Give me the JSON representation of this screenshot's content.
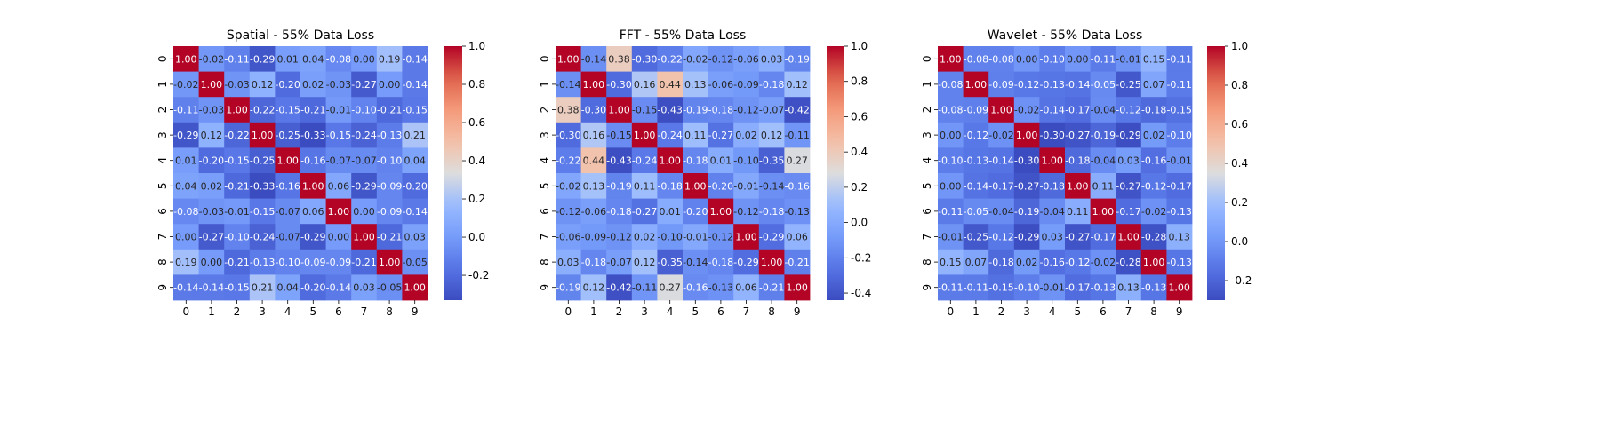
{
  "chart_data": [
    {
      "type": "heatmap",
      "title": "Spatial - 55% Data Loss",
      "x_labels": [
        "0",
        "1",
        "2",
        "3",
        "4",
        "5",
        "6",
        "7",
        "8",
        "9"
      ],
      "y_labels": [
        "0",
        "1",
        "2",
        "3",
        "4",
        "5",
        "6",
        "7",
        "8",
        "9"
      ],
      "colorscale": "coolwarm",
      "vmin": -0.33,
      "vmax": 1.0,
      "colorbar_ticks": [
        "-0.2",
        "0.0",
        "0.2",
        "0.4",
        "0.6",
        "0.8",
        "1.0"
      ],
      "colorbar_tick_values": [
        -0.2,
        0.0,
        0.2,
        0.4,
        0.6,
        0.8,
        1.0
      ],
      "values": [
        [
          1.0,
          -0.02,
          -0.11,
          -0.29,
          0.01,
          0.04,
          -0.08,
          0.0,
          0.19,
          -0.14
        ],
        [
          -0.02,
          1.0,
          -0.03,
          0.12,
          -0.2,
          0.02,
          -0.03,
          -0.27,
          0.0,
          -0.14
        ],
        [
          -0.11,
          -0.03,
          1.0,
          -0.22,
          -0.15,
          -0.21,
          -0.01,
          -0.1,
          -0.21,
          -0.15
        ],
        [
          -0.29,
          0.12,
          -0.22,
          1.0,
          -0.25,
          -0.33,
          -0.15,
          -0.24,
          -0.13,
          0.21
        ],
        [
          0.01,
          -0.2,
          -0.15,
          -0.25,
          1.0,
          -0.16,
          -0.07,
          -0.07,
          -0.1,
          0.04
        ],
        [
          0.04,
          0.02,
          -0.21,
          -0.33,
          -0.16,
          1.0,
          0.06,
          -0.29,
          -0.09,
          -0.2
        ],
        [
          -0.08,
          -0.03,
          -0.01,
          -0.15,
          -0.07,
          0.06,
          1.0,
          -0.0,
          -0.09,
          -0.14
        ],
        [
          0.0,
          -0.27,
          -0.1,
          -0.24,
          -0.07,
          -0.29,
          -0.0,
          1.0,
          -0.21,
          0.03
        ],
        [
          0.19,
          0.0,
          -0.21,
          -0.13,
          -0.1,
          -0.09,
          -0.09,
          -0.21,
          1.0,
          -0.05
        ],
        [
          -0.14,
          -0.14,
          -0.15,
          0.21,
          0.04,
          -0.2,
          -0.14,
          0.03,
          -0.05,
          1.0
        ]
      ]
    },
    {
      "type": "heatmap",
      "title": "FFT - 55% Data Loss",
      "x_labels": [
        "0",
        "1",
        "2",
        "3",
        "4",
        "5",
        "6",
        "7",
        "8",
        "9"
      ],
      "y_labels": [
        "0",
        "1",
        "2",
        "3",
        "4",
        "5",
        "6",
        "7",
        "8",
        "9"
      ],
      "colorscale": "coolwarm",
      "vmin": -0.44,
      "vmax": 1.0,
      "colorbar_ticks": [
        "-0.4",
        "-0.2",
        "0.0",
        "0.2",
        "0.4",
        "0.6",
        "0.8",
        "1.0"
      ],
      "colorbar_tick_values": [
        -0.4,
        -0.2,
        0.0,
        0.2,
        0.4,
        0.6,
        0.8,
        1.0
      ],
      "values": [
        [
          1.0,
          -0.14,
          0.38,
          -0.3,
          -0.22,
          -0.02,
          -0.12,
          -0.06,
          0.03,
          -0.19
        ],
        [
          -0.14,
          1.0,
          -0.3,
          0.16,
          0.44,
          0.13,
          -0.06,
          -0.09,
          -0.18,
          0.12
        ],
        [
          0.38,
          -0.3,
          1.0,
          -0.15,
          -0.43,
          -0.19,
          -0.18,
          -0.12,
          -0.07,
          -0.42
        ],
        [
          -0.3,
          0.16,
          -0.15,
          1.0,
          -0.24,
          0.11,
          -0.27,
          0.02,
          0.12,
          -0.11
        ],
        [
          -0.22,
          0.44,
          -0.43,
          -0.24,
          1.0,
          -0.18,
          0.01,
          -0.1,
          -0.35,
          0.27
        ],
        [
          -0.02,
          0.13,
          -0.19,
          0.11,
          -0.18,
          1.0,
          -0.2,
          -0.01,
          -0.14,
          -0.16
        ],
        [
          -0.12,
          -0.06,
          -0.18,
          -0.27,
          0.01,
          -0.2,
          1.0,
          -0.12,
          -0.18,
          -0.13
        ],
        [
          -0.06,
          -0.09,
          -0.12,
          0.02,
          -0.1,
          -0.01,
          -0.12,
          1.0,
          -0.29,
          0.06
        ],
        [
          0.03,
          -0.18,
          -0.07,
          0.12,
          -0.35,
          -0.14,
          -0.18,
          -0.29,
          1.0,
          -0.21
        ],
        [
          -0.19,
          0.12,
          -0.42,
          -0.11,
          0.27,
          -0.16,
          -0.13,
          0.06,
          -0.21,
          1.0
        ]
      ]
    },
    {
      "type": "heatmap",
      "title": "Wavelet - 55% Data Loss",
      "x_labels": [
        "0",
        "1",
        "2",
        "3",
        "4",
        "5",
        "6",
        "7",
        "8",
        "9"
      ],
      "y_labels": [
        "0",
        "1",
        "2",
        "3",
        "4",
        "5",
        "6",
        "7",
        "8",
        "9"
      ],
      "colorscale": "coolwarm",
      "vmin": -0.3,
      "vmax": 1.0,
      "colorbar_ticks": [
        "-0.2",
        "0.0",
        "0.2",
        "0.4",
        "0.6",
        "0.8",
        "1.0"
      ],
      "colorbar_tick_values": [
        -0.2,
        0.0,
        0.2,
        0.4,
        0.6,
        0.8,
        1.0
      ],
      "values": [
        [
          1.0,
          -0.08,
          -0.08,
          0.0,
          -0.1,
          0.0,
          -0.11,
          -0.01,
          0.15,
          -0.11
        ],
        [
          -0.08,
          1.0,
          -0.09,
          -0.12,
          -0.13,
          -0.14,
          -0.05,
          -0.25,
          0.07,
          -0.11
        ],
        [
          -0.08,
          -0.09,
          1.0,
          -0.02,
          -0.14,
          -0.17,
          -0.04,
          -0.12,
          -0.18,
          -0.15
        ],
        [
          0.0,
          -0.12,
          -0.02,
          1.0,
          -0.3,
          -0.27,
          -0.19,
          -0.29,
          0.02,
          -0.1
        ],
        [
          -0.1,
          -0.13,
          -0.14,
          -0.3,
          1.0,
          -0.18,
          -0.04,
          0.03,
          -0.16,
          -0.01
        ],
        [
          0.0,
          -0.14,
          -0.17,
          -0.27,
          -0.18,
          1.0,
          0.11,
          -0.27,
          -0.12,
          -0.17
        ],
        [
          -0.11,
          -0.05,
          -0.04,
          -0.19,
          -0.04,
          0.11,
          1.0,
          -0.17,
          -0.02,
          -0.13
        ],
        [
          -0.01,
          -0.25,
          -0.12,
          -0.29,
          0.03,
          -0.27,
          -0.17,
          1.0,
          -0.28,
          0.13
        ],
        [
          0.15,
          0.07,
          -0.18,
          0.02,
          -0.16,
          -0.12,
          -0.02,
          -0.28,
          1.0,
          -0.13
        ],
        [
          -0.11,
          -0.11,
          -0.15,
          -0.1,
          -0.01,
          -0.17,
          -0.13,
          0.13,
          -0.13,
          1.0
        ]
      ]
    }
  ]
}
